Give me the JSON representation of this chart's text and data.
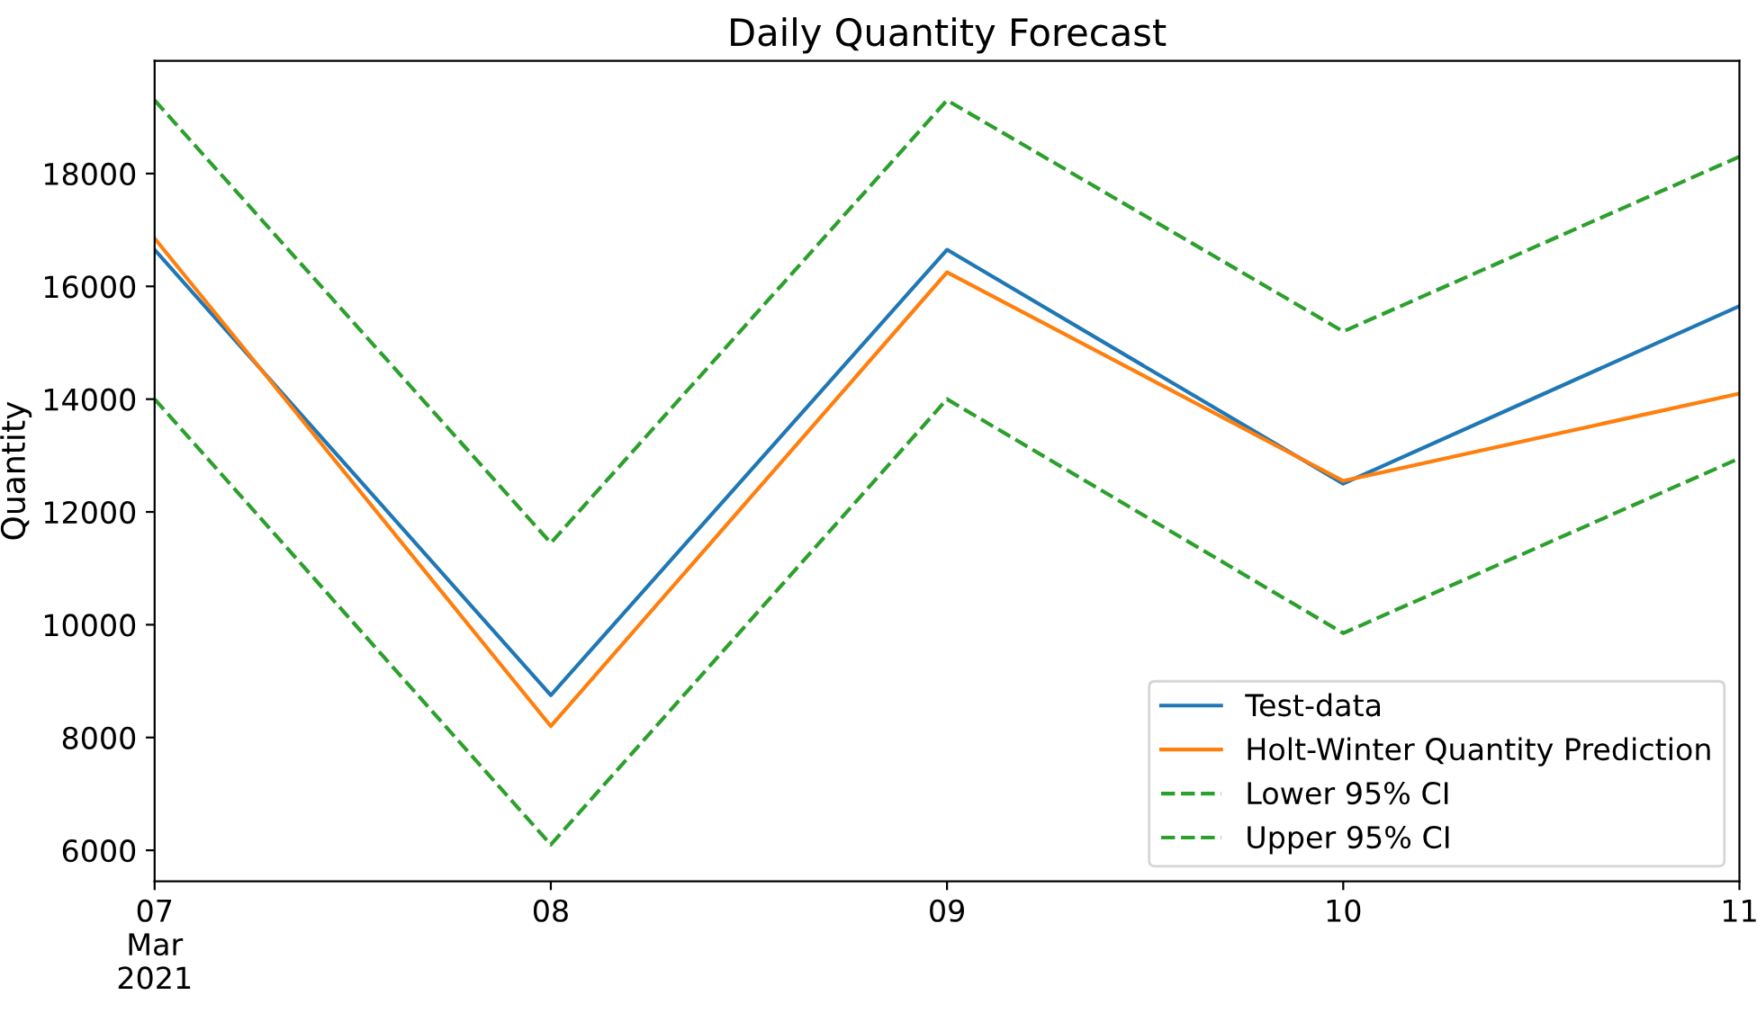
{
  "chart_data": {
    "type": "line",
    "title": "Daily Quantity Forecast",
    "ylabel": "Quantity",
    "x": [
      "2021-03-07",
      "2021-03-08",
      "2021-03-09",
      "2021-03-10",
      "2021-03-11"
    ],
    "series": [
      {
        "name": "Test-data",
        "color": "#1f77b4",
        "values": [
          16650,
          8750,
          16650,
          12500,
          15650
        ]
      },
      {
        "name": "Holt-Winter Quantity Prediction",
        "color": "#ff7f0e",
        "values": [
          16850,
          8200,
          16250,
          12550,
          14100
        ]
      },
      {
        "name": "Lower 95% CI",
        "color": "#2ca02c",
        "line_style": "dashed",
        "values": [
          14000,
          6100,
          14000,
          9850,
          12950
        ]
      },
      {
        "name": "Upper 95% CI",
        "color": "#2ca02c",
        "line_style": "dashed",
        "values": [
          19300,
          11450,
          19300,
          15200,
          18300
        ]
      }
    ],
    "xlim": [
      "2021-03-07",
      "2021-03-11"
    ],
    "xticks": [
      {
        "value": "2021-03-07",
        "label": "07\nMar\n2021"
      },
      {
        "value": "2021-03-08",
        "label": "08"
      },
      {
        "value": "2021-03-09",
        "label": "09"
      },
      {
        "value": "2021-03-10",
        "label": "10"
      },
      {
        "value": "2021-03-11",
        "label": "11"
      }
    ],
    "ylim": [
      5450,
      20000
    ],
    "yticks": [
      6000,
      8000,
      10000,
      12000,
      14000,
      16000,
      18000
    ],
    "grid": false,
    "legend": "lower right"
  }
}
